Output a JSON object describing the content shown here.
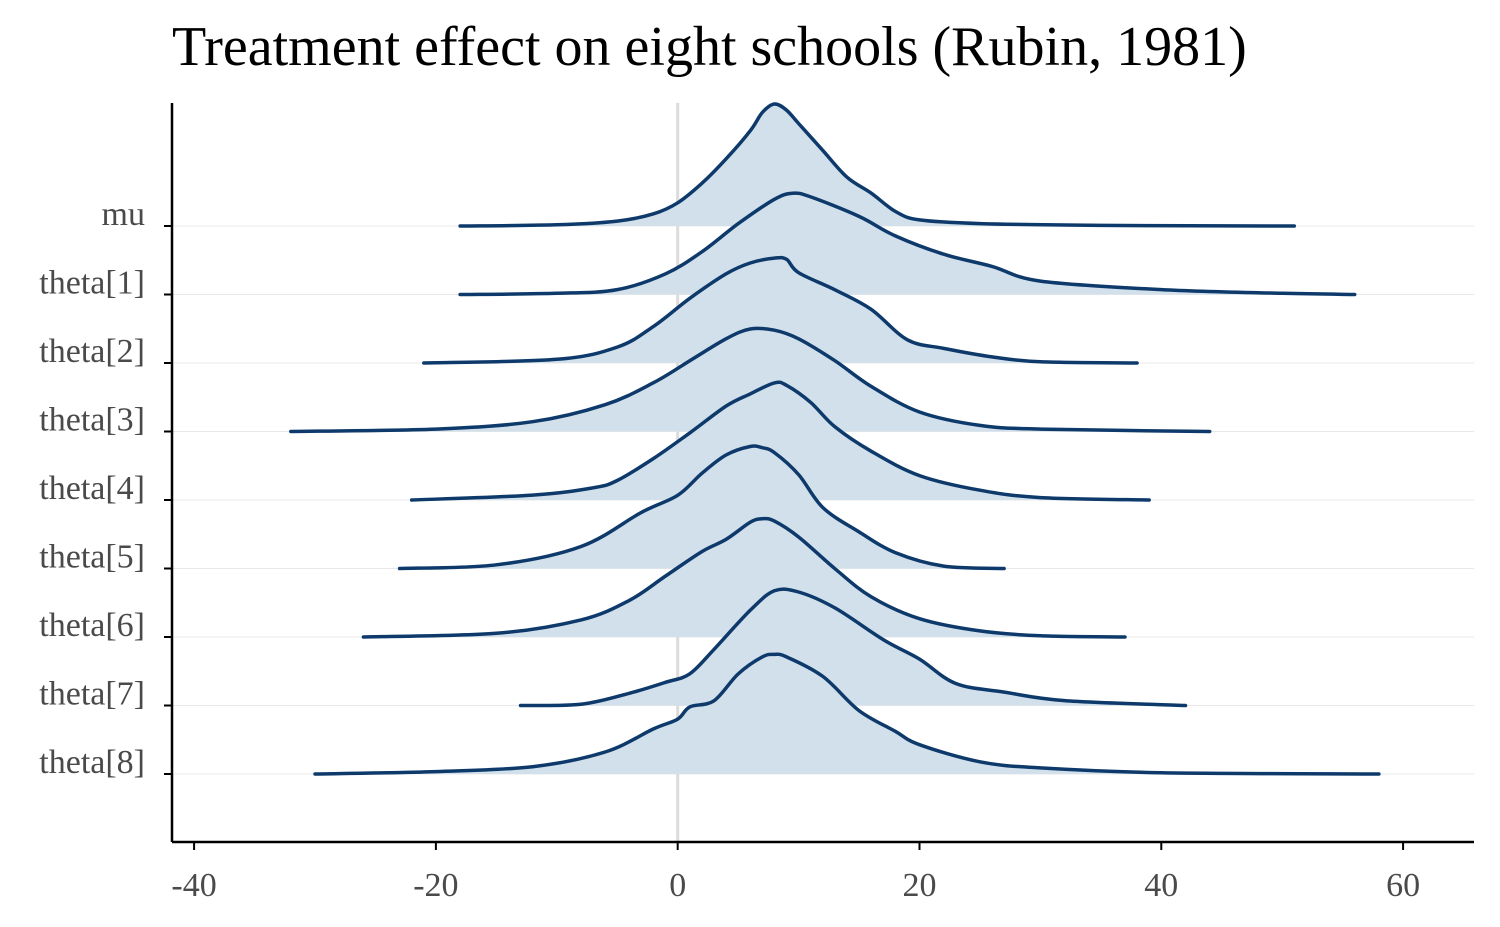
{
  "chart_data": {
    "type": "ridgeline",
    "title": "Treatment effect on eight schools (Rubin, 1981)",
    "xlabel": "",
    "ylabel": "",
    "xlim": [
      -41,
      66
    ],
    "x_ticks": [
      -40,
      -20,
      0,
      20,
      40,
      60
    ],
    "x_tick_labels": [
      "-40",
      "-20",
      "0",
      "20",
      "40",
      "60"
    ],
    "reference_line_x": 0,
    "grid": "horizontal baselines only",
    "colors": {
      "line": "#0e3a6b",
      "fill": "#d2e0ec",
      "reference_line": "#dcdcdc",
      "baseline_grid": "#e8e8e8",
      "axis": "#000000",
      "tick_label": "#4a4a4a"
    },
    "series": [
      {
        "name": "mu",
        "range": [
          -18,
          51
        ],
        "density": [
          [
            -18,
            0
          ],
          [
            -10,
            0.01
          ],
          [
            -5,
            0.04
          ],
          [
            -2,
            0.1
          ],
          [
            0,
            0.19
          ],
          [
            2,
            0.35
          ],
          [
            4,
            0.55
          ],
          [
            6,
            0.78
          ],
          [
            7,
            0.93
          ],
          [
            8,
            1.0
          ],
          [
            9,
            0.95
          ],
          [
            10,
            0.84
          ],
          [
            12,
            0.62
          ],
          [
            14,
            0.4
          ],
          [
            16,
            0.27
          ],
          [
            18,
            0.12
          ],
          [
            20,
            0.05
          ],
          [
            25,
            0.02
          ],
          [
            35,
            0.005
          ],
          [
            51,
            0
          ]
        ]
      },
      {
        "name": "theta[1]",
        "range": [
          -18,
          56
        ],
        "density": [
          [
            -18,
            0
          ],
          [
            -10,
            0.01
          ],
          [
            -5,
            0.04
          ],
          [
            -1,
            0.17
          ],
          [
            2,
            0.35
          ],
          [
            5,
            0.58
          ],
          [
            8,
            0.78
          ],
          [
            9.5,
            0.83
          ],
          [
            11,
            0.8
          ],
          [
            15,
            0.64
          ],
          [
            18,
            0.48
          ],
          [
            22,
            0.33
          ],
          [
            26,
            0.23
          ],
          [
            30,
            0.11
          ],
          [
            40,
            0.04
          ],
          [
            50,
            0.01
          ],
          [
            56,
            0
          ]
        ]
      },
      {
        "name": "theta[2]",
        "range": [
          -21,
          38
        ],
        "density": [
          [
            -21,
            0
          ],
          [
            -10,
            0.03
          ],
          [
            -5,
            0.13
          ],
          [
            -2,
            0.3
          ],
          [
            1,
            0.53
          ],
          [
            4,
            0.73
          ],
          [
            6,
            0.82
          ],
          [
            8,
            0.86
          ],
          [
            9,
            0.85
          ],
          [
            10,
            0.74
          ],
          [
            13,
            0.6
          ],
          [
            16,
            0.44
          ],
          [
            19,
            0.19
          ],
          [
            22,
            0.12
          ],
          [
            26,
            0.05
          ],
          [
            30,
            0.01
          ],
          [
            38,
            0
          ]
        ]
      },
      {
        "name": "theta[3]",
        "range": [
          -32,
          44
        ],
        "density": [
          [
            -32,
            0
          ],
          [
            -20,
            0.02
          ],
          [
            -12,
            0.08
          ],
          [
            -6,
            0.22
          ],
          [
            -2,
            0.4
          ],
          [
            1,
            0.58
          ],
          [
            4,
            0.76
          ],
          [
            6,
            0.84
          ],
          [
            8,
            0.83
          ],
          [
            10,
            0.76
          ],
          [
            13,
            0.58
          ],
          [
            16,
            0.37
          ],
          [
            20,
            0.16
          ],
          [
            25,
            0.05
          ],
          [
            30,
            0.02
          ],
          [
            44,
            0
          ]
        ]
      },
      {
        "name": "theta[4]",
        "range": [
          -22,
          39
        ],
        "density": [
          [
            -22,
            0
          ],
          [
            -12,
            0.04
          ],
          [
            -7,
            0.1
          ],
          [
            -5,
            0.16
          ],
          [
            -2,
            0.34
          ],
          [
            1,
            0.55
          ],
          [
            4,
            0.77
          ],
          [
            6,
            0.87
          ],
          [
            8,
            0.96
          ],
          [
            9,
            0.94
          ],
          [
            11,
            0.8
          ],
          [
            13,
            0.6
          ],
          [
            16,
            0.4
          ],
          [
            20,
            0.2
          ],
          [
            25,
            0.08
          ],
          [
            30,
            0.02
          ],
          [
            39,
            0
          ]
        ]
      },
      {
        "name": "theta[5]",
        "range": [
          -23,
          27
        ],
        "density": [
          [
            -23,
            0
          ],
          [
            -15,
            0.03
          ],
          [
            -8,
            0.18
          ],
          [
            -3,
            0.46
          ],
          [
            0,
            0.6
          ],
          [
            2,
            0.78
          ],
          [
            4,
            0.93
          ],
          [
            6,
            1.0
          ],
          [
            7,
            0.99
          ],
          [
            8,
            0.95
          ],
          [
            10,
            0.77
          ],
          [
            12,
            0.5
          ],
          [
            15,
            0.3
          ],
          [
            18,
            0.13
          ],
          [
            22,
            0.02
          ],
          [
            27,
            0
          ]
        ]
      },
      {
        "name": "theta[6]",
        "range": [
          -26,
          37
        ],
        "density": [
          [
            -26,
            0
          ],
          [
            -15,
            0.03
          ],
          [
            -8,
            0.14
          ],
          [
            -4,
            0.3
          ],
          [
            -1,
            0.5
          ],
          [
            2,
            0.7
          ],
          [
            4,
            0.8
          ],
          [
            6,
            0.94
          ],
          [
            7,
            0.97
          ],
          [
            8,
            0.95
          ],
          [
            10,
            0.82
          ],
          [
            13,
            0.56
          ],
          [
            16,
            0.33
          ],
          [
            20,
            0.15
          ],
          [
            25,
            0.05
          ],
          [
            30,
            0.01
          ],
          [
            37,
            0
          ]
        ]
      },
      {
        "name": "theta[7]",
        "range": [
          -13,
          42
        ],
        "density": [
          [
            -13,
            0
          ],
          [
            -8,
            0.01
          ],
          [
            -4,
            0.1
          ],
          [
            -1,
            0.19
          ],
          [
            1,
            0.26
          ],
          [
            3,
            0.46
          ],
          [
            6,
            0.78
          ],
          [
            8,
            0.94
          ],
          [
            10,
            0.93
          ],
          [
            13,
            0.8
          ],
          [
            17,
            0.54
          ],
          [
            20,
            0.38
          ],
          [
            23,
            0.18
          ],
          [
            27,
            0.11
          ],
          [
            32,
            0.04
          ],
          [
            42,
            0
          ]
        ]
      },
      {
        "name": "theta[8]",
        "range": [
          -30,
          58
        ],
        "density": [
          [
            -30,
            0
          ],
          [
            -20,
            0.02
          ],
          [
            -12,
            0.06
          ],
          [
            -6,
            0.18
          ],
          [
            -2,
            0.37
          ],
          [
            0,
            0.45
          ],
          [
            1,
            0.55
          ],
          [
            3,
            0.6
          ],
          [
            5,
            0.82
          ],
          [
            7,
            0.96
          ],
          [
            8,
            0.98
          ],
          [
            9,
            0.96
          ],
          [
            12,
            0.8
          ],
          [
            15,
            0.52
          ],
          [
            18,
            0.35
          ],
          [
            20,
            0.24
          ],
          [
            25,
            0.1
          ],
          [
            30,
            0.05
          ],
          [
            40,
            0.01
          ],
          [
            58,
            0
          ]
        ]
      }
    ]
  }
}
